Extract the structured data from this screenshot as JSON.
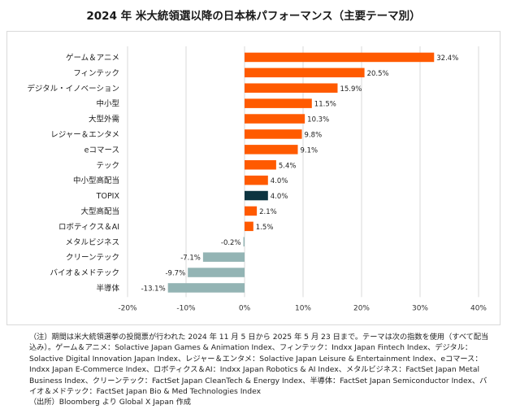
{
  "title": "2024 年  米大統領選以降の日本株パフォーマンス（主要テーマ別）",
  "chart_data": {
    "type": "bar",
    "orientation": "horizontal",
    "title": "2024 年  米大統領選以降の日本株パフォーマンス（主要テーマ別）",
    "categories": [
      "ゲーム＆アニメ",
      "フィンテック",
      "デジタル・イノベーション",
      "中小型",
      "大型外需",
      "レジャー＆エンタメ",
      "eコマース",
      "テック",
      "中小型高配当",
      "TOPIX",
      "大型高配当",
      "ロボティクス＆AI",
      "メタルビジネス",
      "クリーンテック",
      "バイオ＆メドテック",
      "半導体"
    ],
    "values": [
      32.4,
      20.5,
      15.9,
      11.5,
      10.3,
      9.8,
      9.1,
      5.4,
      4.0,
      4.0,
      2.1,
      1.5,
      -0.2,
      -7.1,
      -9.7,
      -13.1
    ],
    "value_labels": [
      "32.4%",
      "20.5%",
      "15.9%",
      "11.5%",
      "10.3%",
      "9.8%",
      "9.1%",
      "5.4%",
      "4.0%",
      "4.0%",
      "2.1%",
      "1.5%",
      "-0.2%",
      "-7.1%",
      "-9.7%",
      "-13.1%"
    ],
    "xlim": [
      -20,
      40
    ],
    "xticks": [
      -20,
      -10,
      0,
      10,
      20,
      30,
      40
    ],
    "xtick_labels": [
      "-20%",
      "-10%",
      "0%",
      "10%",
      "20%",
      "30%",
      "40%"
    ],
    "xlabel": "",
    "ylabel": "",
    "grid": true,
    "legend": "none",
    "colors": {
      "positive": "#ff5a00",
      "negative": "#93b4b4",
      "benchmark": "#0d3440",
      "grid": "#d9d9d9"
    },
    "benchmark_category": "TOPIX"
  },
  "notes": {
    "line1": "（注）期間は米大統領選挙の投開票が行われた 2024 年 11 月 5 日から 2025 年 5 月 23 日まで。テーマは次の指数を使用（すべて配当込み）。ゲーム＆アニメ：Solactive Japan Games & Animation Index、フィンテック：Indxx Japan Fintech Index、デジタル：Solactive Digital Innovation Japan Index、レジャー＆エンタメ：Solactive Japan Leisure & Entertainment Index、eコマース：Indxx Japan E-Commerce Index、ロボティクス＆AI：Indxx Japan Robotics & AI Index、メタルビジネス：FactSet Japan Metal Business Index、クリーンテック：FactSet Japan CleanTech & Energy Index、半導体：FactSet Japan Semiconductor Index、バイオ＆メドテック：FactSet Japan Bio & Med Technologies Index",
    "line2": "（出所）Bloomberg より Global X Japan 作成"
  }
}
